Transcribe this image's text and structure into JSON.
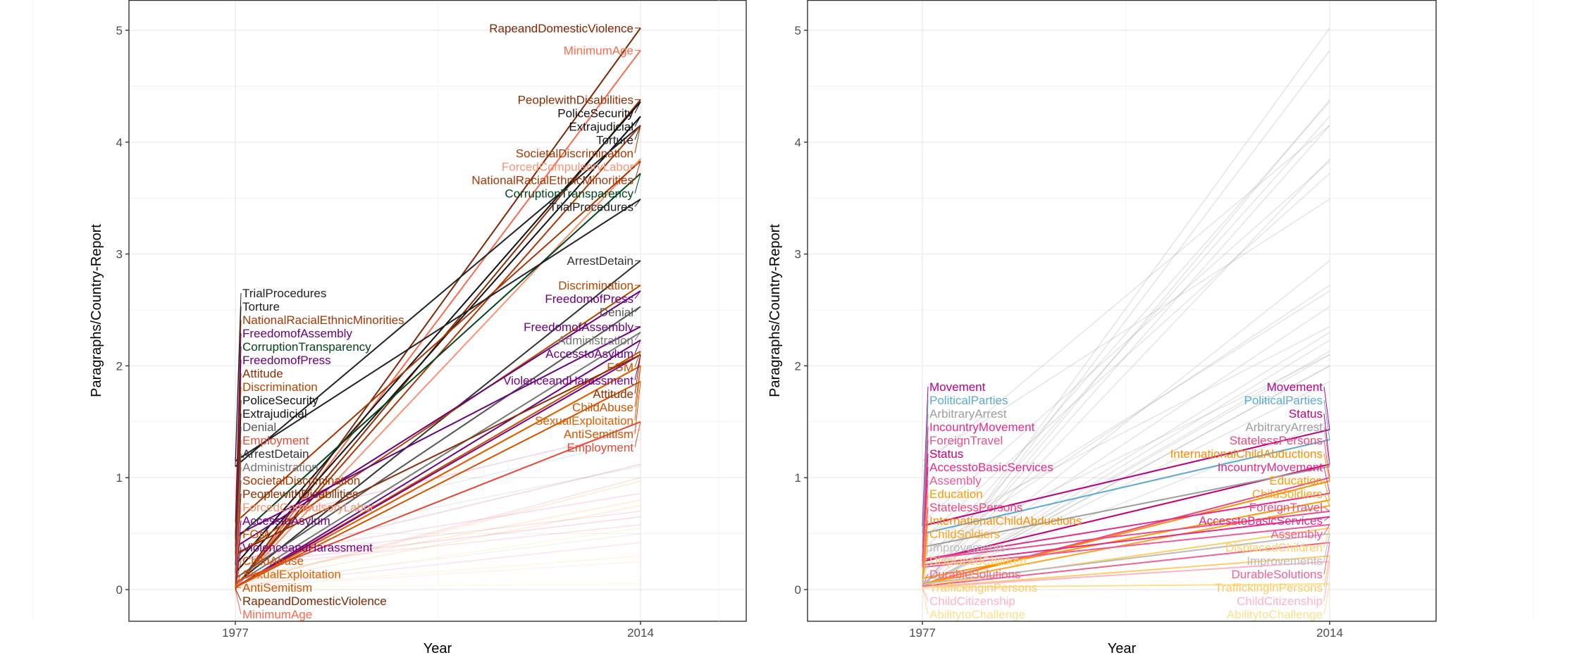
{
  "chart_data": [
    {
      "type": "line",
      "xlabel": "Year",
      "ylabel": "Paragraphs/Country-Report",
      "x_ticks": [
        "1977",
        "2014"
      ],
      "y_ticks": [
        "0",
        "1",
        "2",
        "3",
        "4",
        "5"
      ],
      "ylim": [
        -0.1,
        5.25
      ],
      "grid": true,
      "highlighted_series": [
        {
          "name": "RapeandDomesticViolence",
          "values": [
            0.01,
            5.02
          ],
          "color": "#7f2704"
        },
        {
          "name": "MinimumAge",
          "values": [
            0.0,
            4.82
          ],
          "color": "#fb6a4a"
        },
        {
          "name": "PeoplewithDisabilities",
          "values": [
            0.02,
            4.38
          ],
          "color": "#8c2d04"
        },
        {
          "name": "PoliceSecurity",
          "values": [
            0.22,
            4.36
          ],
          "color": "#111111"
        },
        {
          "name": "Extrajudicial",
          "values": [
            0.15,
            4.23
          ],
          "color": "#111111"
        },
        {
          "name": "Torture",
          "values": [
            1.1,
            4.15
          ],
          "color": "#222222"
        },
        {
          "name": "SocietalDiscrimination",
          "values": [
            0.03,
            4.15
          ],
          "color": "#a63603"
        },
        {
          "name": "ForcedCompulsoryLabor",
          "values": [
            0.02,
            3.85
          ],
          "color": "#fc9272"
        },
        {
          "name": "NationalRacialEthnicMinorities",
          "values": [
            0.6,
            3.83
          ],
          "color": "#a63603"
        },
        {
          "name": "CorruptionTransparency",
          "values": [
            0.45,
            3.72
          ],
          "color": "#00441b"
        },
        {
          "name": "TrialProcedures",
          "values": [
            1.15,
            3.49
          ],
          "color": "#222222"
        },
        {
          "name": "ArrestDetain",
          "values": [
            0.05,
            2.94
          ],
          "color": "#333333"
        },
        {
          "name": "Discrimination",
          "values": [
            0.3,
            2.72
          ],
          "color": "#b34700"
        },
        {
          "name": "FreedomofPress",
          "values": [
            0.38,
            2.67
          ],
          "color": "#6a0080"
        },
        {
          "name": "Denial",
          "values": [
            0.1,
            2.53
          ],
          "color": "#555555"
        },
        {
          "name": "FreedomofAssembly",
          "values": [
            0.48,
            2.35
          ],
          "color": "#6a0080"
        },
        {
          "name": "Administration",
          "values": [
            0.05,
            2.3
          ],
          "color": "#777777"
        },
        {
          "name": "AccesstoAsylum",
          "values": [
            0.02,
            2.23
          ],
          "color": "#6a0080"
        },
        {
          "name": "FGM",
          "values": [
            0.02,
            2.13
          ],
          "color": "#c44e00"
        },
        {
          "name": "ViolenceandHarassment",
          "values": [
            0.02,
            2.1
          ],
          "color": "#7a0085"
        },
        {
          "name": "Attitude",
          "values": [
            0.32,
            2.1
          ],
          "color": "#8c2d04"
        },
        {
          "name": "ChildAbuse",
          "values": [
            0.02,
            2.0
          ],
          "color": "#d35400"
        },
        {
          "name": "SexualExploitation",
          "values": [
            0.02,
            2.0
          ],
          "color": "#e06000"
        },
        {
          "name": "AntiSemitism",
          "values": [
            0.02,
            1.86
          ],
          "color": "#d35400"
        },
        {
          "name": "Employment",
          "values": [
            0.07,
            1.5
          ],
          "color": "#e34a33"
        }
      ]
    },
    {
      "type": "line",
      "xlabel": "Year",
      "ylabel": "Paragraphs/Country-Report",
      "x_ticks": [
        "1977",
        "2014"
      ],
      "y_ticks": [
        "0",
        "1",
        "2",
        "3",
        "4",
        "5"
      ],
      "ylim": [
        -0.1,
        5.25
      ],
      "grid": true,
      "highlighted_series": [
        {
          "name": "Movement",
          "values": [
            0.57,
            1.43
          ],
          "color": "#b5008a"
        },
        {
          "name": "PoliticalParties",
          "values": [
            0.5,
            1.34
          ],
          "color": "#5aa9d6"
        },
        {
          "name": "Status",
          "values": [
            0.25,
            1.12
          ],
          "color": "#c2007a"
        },
        {
          "name": "ArbitraryArrest",
          "values": [
            0.38,
            1.1
          ],
          "color": "#9e9e9e"
        },
        {
          "name": "StatelessPersons",
          "values": [
            0.05,
            1.0
          ],
          "color": "#f0467a"
        },
        {
          "name": "InternationalChildAbductions",
          "values": [
            0.05,
            0.97
          ],
          "color": "#ff8c00"
        },
        {
          "name": "IncountryMovement",
          "values": [
            0.27,
            0.86
          ],
          "color": "#e7298a"
        },
        {
          "name": "Education",
          "values": [
            0.1,
            0.8
          ],
          "color": "#ff9900"
        },
        {
          "name": "ChildSoldiers",
          "values": [
            0.05,
            0.75
          ],
          "color": "#ffa31a"
        },
        {
          "name": "ForeignTravel",
          "values": [
            0.27,
            0.7
          ],
          "color": "#e94f8a"
        },
        {
          "name": "AccesstoBasicServices",
          "values": [
            0.22,
            0.65
          ],
          "color": "#e7298a"
        },
        {
          "name": "Assembly",
          "values": [
            0.2,
            0.58
          ],
          "color": "#ee5a9a"
        },
        {
          "name": "DisplacedChildren",
          "values": [
            0.03,
            0.55
          ],
          "color": "#ffd060"
        },
        {
          "name": "Improvements",
          "values": [
            0.05,
            0.5
          ],
          "color": "#bbbbbb"
        },
        {
          "name": "DurableSolutions",
          "values": [
            0.03,
            0.42
          ],
          "color": "#f06292"
        },
        {
          "name": "TraffickinginPersons",
          "values": [
            0.02,
            0.3
          ],
          "color": "#ffcc66"
        },
        {
          "name": "ChildCitizenship",
          "values": [
            0.02,
            0.25
          ],
          "color": "#ffb3c6"
        },
        {
          "name": "AbilitytoChallenge",
          "values": [
            0.02,
            0.05
          ],
          "color": "#ffe08a"
        }
      ]
    }
  ]
}
